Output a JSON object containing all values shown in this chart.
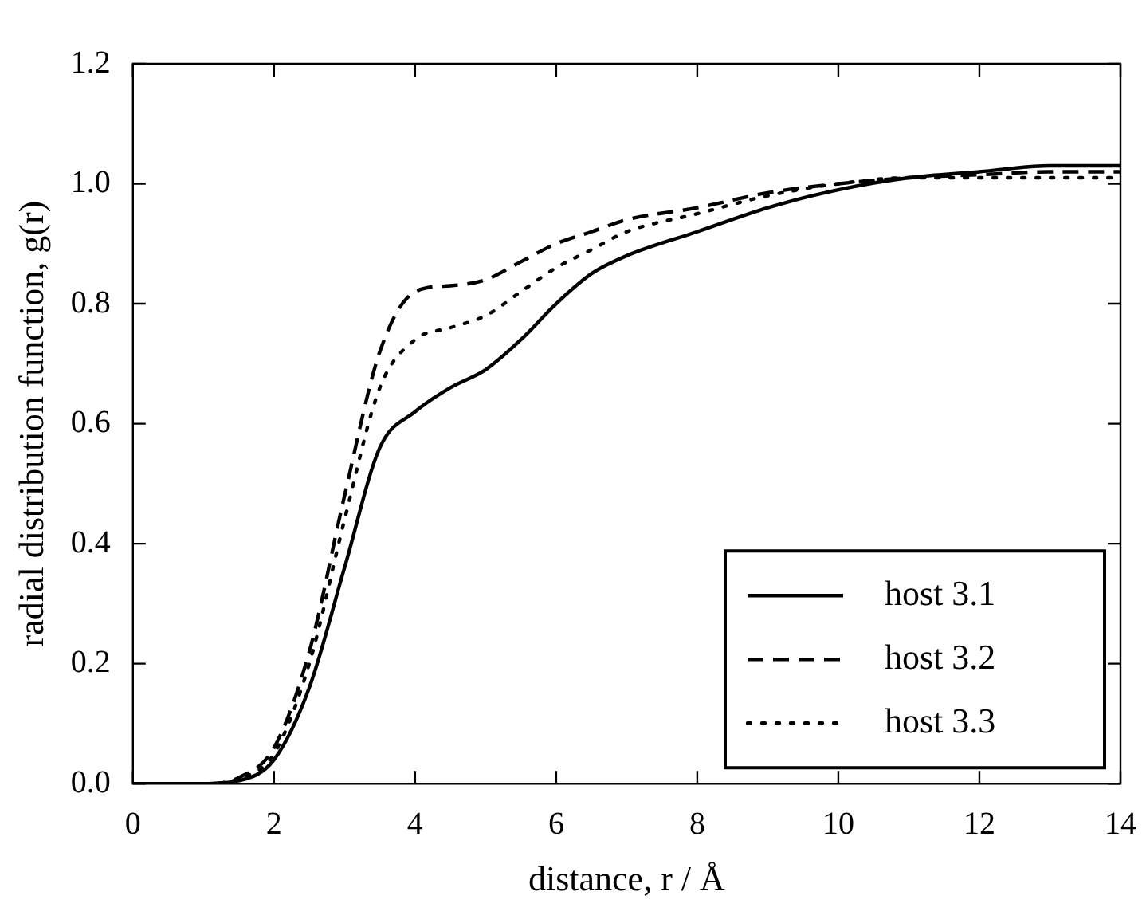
{
  "chart_data": {
    "type": "line",
    "xlabel": "distance, r / Å",
    "ylabel": "radial distribution function, g(r)",
    "x": [
      0,
      1,
      1.5,
      2,
      2.5,
      3,
      3.5,
      4,
      4.5,
      5,
      5.5,
      6,
      6.5,
      7,
      8,
      9,
      10,
      11,
      12,
      13,
      14
    ],
    "series": [
      {
        "name": "host 3.1",
        "color": "#000000",
        "line_style": "solid",
        "values": [
          0,
          0,
          0.005,
          0.04,
          0.16,
          0.36,
          0.56,
          0.62,
          0.66,
          0.69,
          0.74,
          0.8,
          0.85,
          0.88,
          0.92,
          0.96,
          0.99,
          1.01,
          1.02,
          1.03,
          1.03
        ]
      },
      {
        "name": "host 3.2",
        "color": "#000000",
        "line_style": "dashed",
        "values": [
          0,
          0,
          0.01,
          0.06,
          0.22,
          0.48,
          0.72,
          0.82,
          0.83,
          0.84,
          0.87,
          0.9,
          0.92,
          0.94,
          0.96,
          0.985,
          1.0,
          1.01,
          1.015,
          1.02,
          1.02
        ]
      },
      {
        "name": "host 3.3",
        "color": "#000000",
        "line_style": "dotted",
        "values": [
          0,
          0,
          0.008,
          0.05,
          0.2,
          0.44,
          0.66,
          0.74,
          0.76,
          0.78,
          0.82,
          0.86,
          0.89,
          0.92,
          0.95,
          0.98,
          1.0,
          1.01,
          1.01,
          1.01,
          1.01
        ]
      }
    ],
    "xlim": [
      0,
      14
    ],
    "xticks": [
      0,
      2,
      4,
      6,
      8,
      10,
      12,
      14
    ],
    "ylim": [
      0,
      1.2
    ],
    "yticks": [
      {
        "value": 0,
        "label": "0.0"
      },
      {
        "value": 0.2,
        "label": "0.2"
      },
      {
        "value": 0.4,
        "label": "0.4"
      },
      {
        "value": 0.6,
        "label": "0.6"
      },
      {
        "value": 0.8,
        "label": "0.8"
      },
      {
        "value": 1,
        "label": "1.0"
      },
      {
        "value": 1.2,
        "label": "1.2"
      }
    ],
    "grid": false,
    "legend": "bottom right",
    "marker": "none"
  }
}
